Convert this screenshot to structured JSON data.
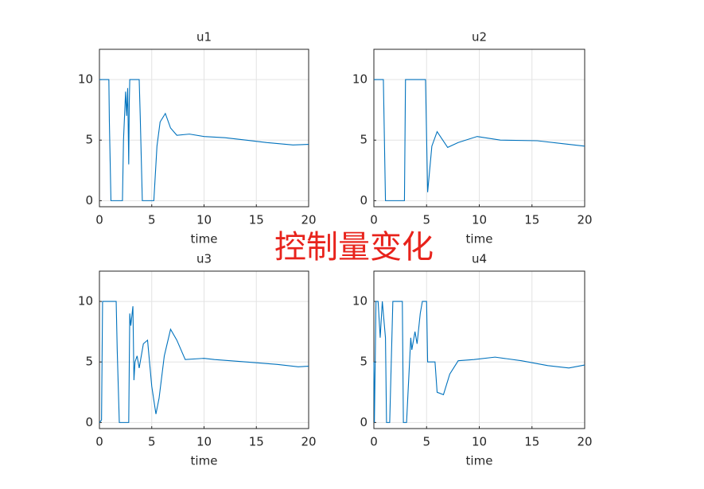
{
  "chart_data": [
    {
      "type": "line",
      "title": "u1",
      "x_label": "time",
      "xlim": [
        0,
        20
      ],
      "ylim": [
        -0.5,
        12.5
      ],
      "xticks": [
        0,
        5,
        10,
        15,
        20
      ],
      "yticks": [
        0,
        5,
        10
      ],
      "grid": true,
      "series": [
        {
          "color": "#0072bd",
          "x": [
            0,
            0.9,
            0.95,
            1.1,
            2.2,
            2.3,
            2.5,
            2.6,
            2.7,
            2.8,
            2.85,
            2.9,
            3.8,
            3.9,
            4.1,
            5.2,
            5.5,
            5.8,
            6.3,
            6.8,
            7.4,
            8.6,
            10,
            12,
            14,
            16,
            18.5,
            20
          ],
          "values": [
            10,
            10,
            6.5,
            0,
            0,
            5,
            9,
            7,
            9.3,
            3,
            8,
            10,
            10,
            7,
            0,
            0,
            4.5,
            6.5,
            7.2,
            6,
            5.4,
            5.5,
            5.3,
            5.2,
            5.0,
            4.8,
            4.6,
            4.65
          ]
        }
      ]
    },
    {
      "type": "line",
      "title": "u2",
      "x_label": "time",
      "xlim": [
        0,
        20
      ],
      "ylim": [
        -0.5,
        12.5
      ],
      "xticks": [
        0,
        5,
        10,
        15,
        20
      ],
      "yticks": [
        0,
        5,
        10
      ],
      "grid": true,
      "series": [
        {
          "color": "#0072bd",
          "x": [
            0,
            0.9,
            1.1,
            2.9,
            3.0,
            4.9,
            5.1,
            5.5,
            6.0,
            7.0,
            8.0,
            9.8,
            12,
            15.5,
            18,
            20
          ],
          "values": [
            10,
            10,
            0,
            0,
            10,
            10,
            0.7,
            4.5,
            5.7,
            4.4,
            4.8,
            5.3,
            5.0,
            4.95,
            4.7,
            4.5
          ]
        }
      ]
    },
    {
      "type": "line",
      "title": "u3",
      "x_label": "time",
      "xlim": [
        0,
        20
      ],
      "ylim": [
        -0.5,
        12.5
      ],
      "xticks": [
        0,
        5,
        10,
        15,
        20
      ],
      "yticks": [
        0,
        5,
        10
      ],
      "grid": true,
      "series": [
        {
          "color": "#0072bd",
          "x": [
            0,
            0.2,
            0.3,
            1.6,
            1.7,
            1.9,
            2.8,
            2.9,
            3.0,
            3.2,
            3.3,
            3.4,
            3.6,
            3.8,
            4.2,
            4.6,
            5.0,
            5.4,
            5.7,
            6.2,
            6.8,
            7.4,
            8.2,
            10,
            11,
            14,
            17,
            19,
            20
          ],
          "values": [
            0,
            0.2,
            10,
            10,
            6,
            0,
            0,
            9,
            8,
            9.6,
            3.5,
            5,
            5.5,
            4.5,
            6.5,
            6.8,
            3,
            0.7,
            2,
            5.5,
            7.7,
            6.8,
            5.2,
            5.3,
            5.2,
            5.0,
            4.8,
            4.6,
            4.65
          ]
        }
      ]
    },
    {
      "type": "line",
      "title": "u4",
      "x_label": "time",
      "xlim": [
        0,
        20
      ],
      "ylim": [
        -0.5,
        12.5
      ],
      "xticks": [
        0,
        5,
        10,
        15,
        20
      ],
      "yticks": [
        0,
        5,
        10
      ],
      "grid": true,
      "series": [
        {
          "color": "#0072bd",
          "x": [
            0,
            0.05,
            0.2,
            0.4,
            0.6,
            0.8,
            1.1,
            1.2,
            1.5,
            1.8,
            2.7,
            2.8,
            3.1,
            3.5,
            3.6,
            3.9,
            4.1,
            4.4,
            4.6,
            5.0,
            5.1,
            5.8,
            6.0,
            6.6,
            7.2,
            8.0,
            9.5,
            11.5,
            14,
            16.5,
            18.5,
            20
          ],
          "values": [
            5,
            0,
            10,
            10,
            7,
            10,
            7,
            0,
            0,
            10,
            10,
            0,
            0,
            7,
            6,
            7.5,
            6.5,
            9,
            10,
            10,
            5,
            5,
            2.5,
            2.3,
            4,
            5.1,
            5.2,
            5.4,
            5.1,
            4.7,
            4.5,
            4.75
          ]
        }
      ]
    }
  ],
  "annotation": "控制量变化"
}
